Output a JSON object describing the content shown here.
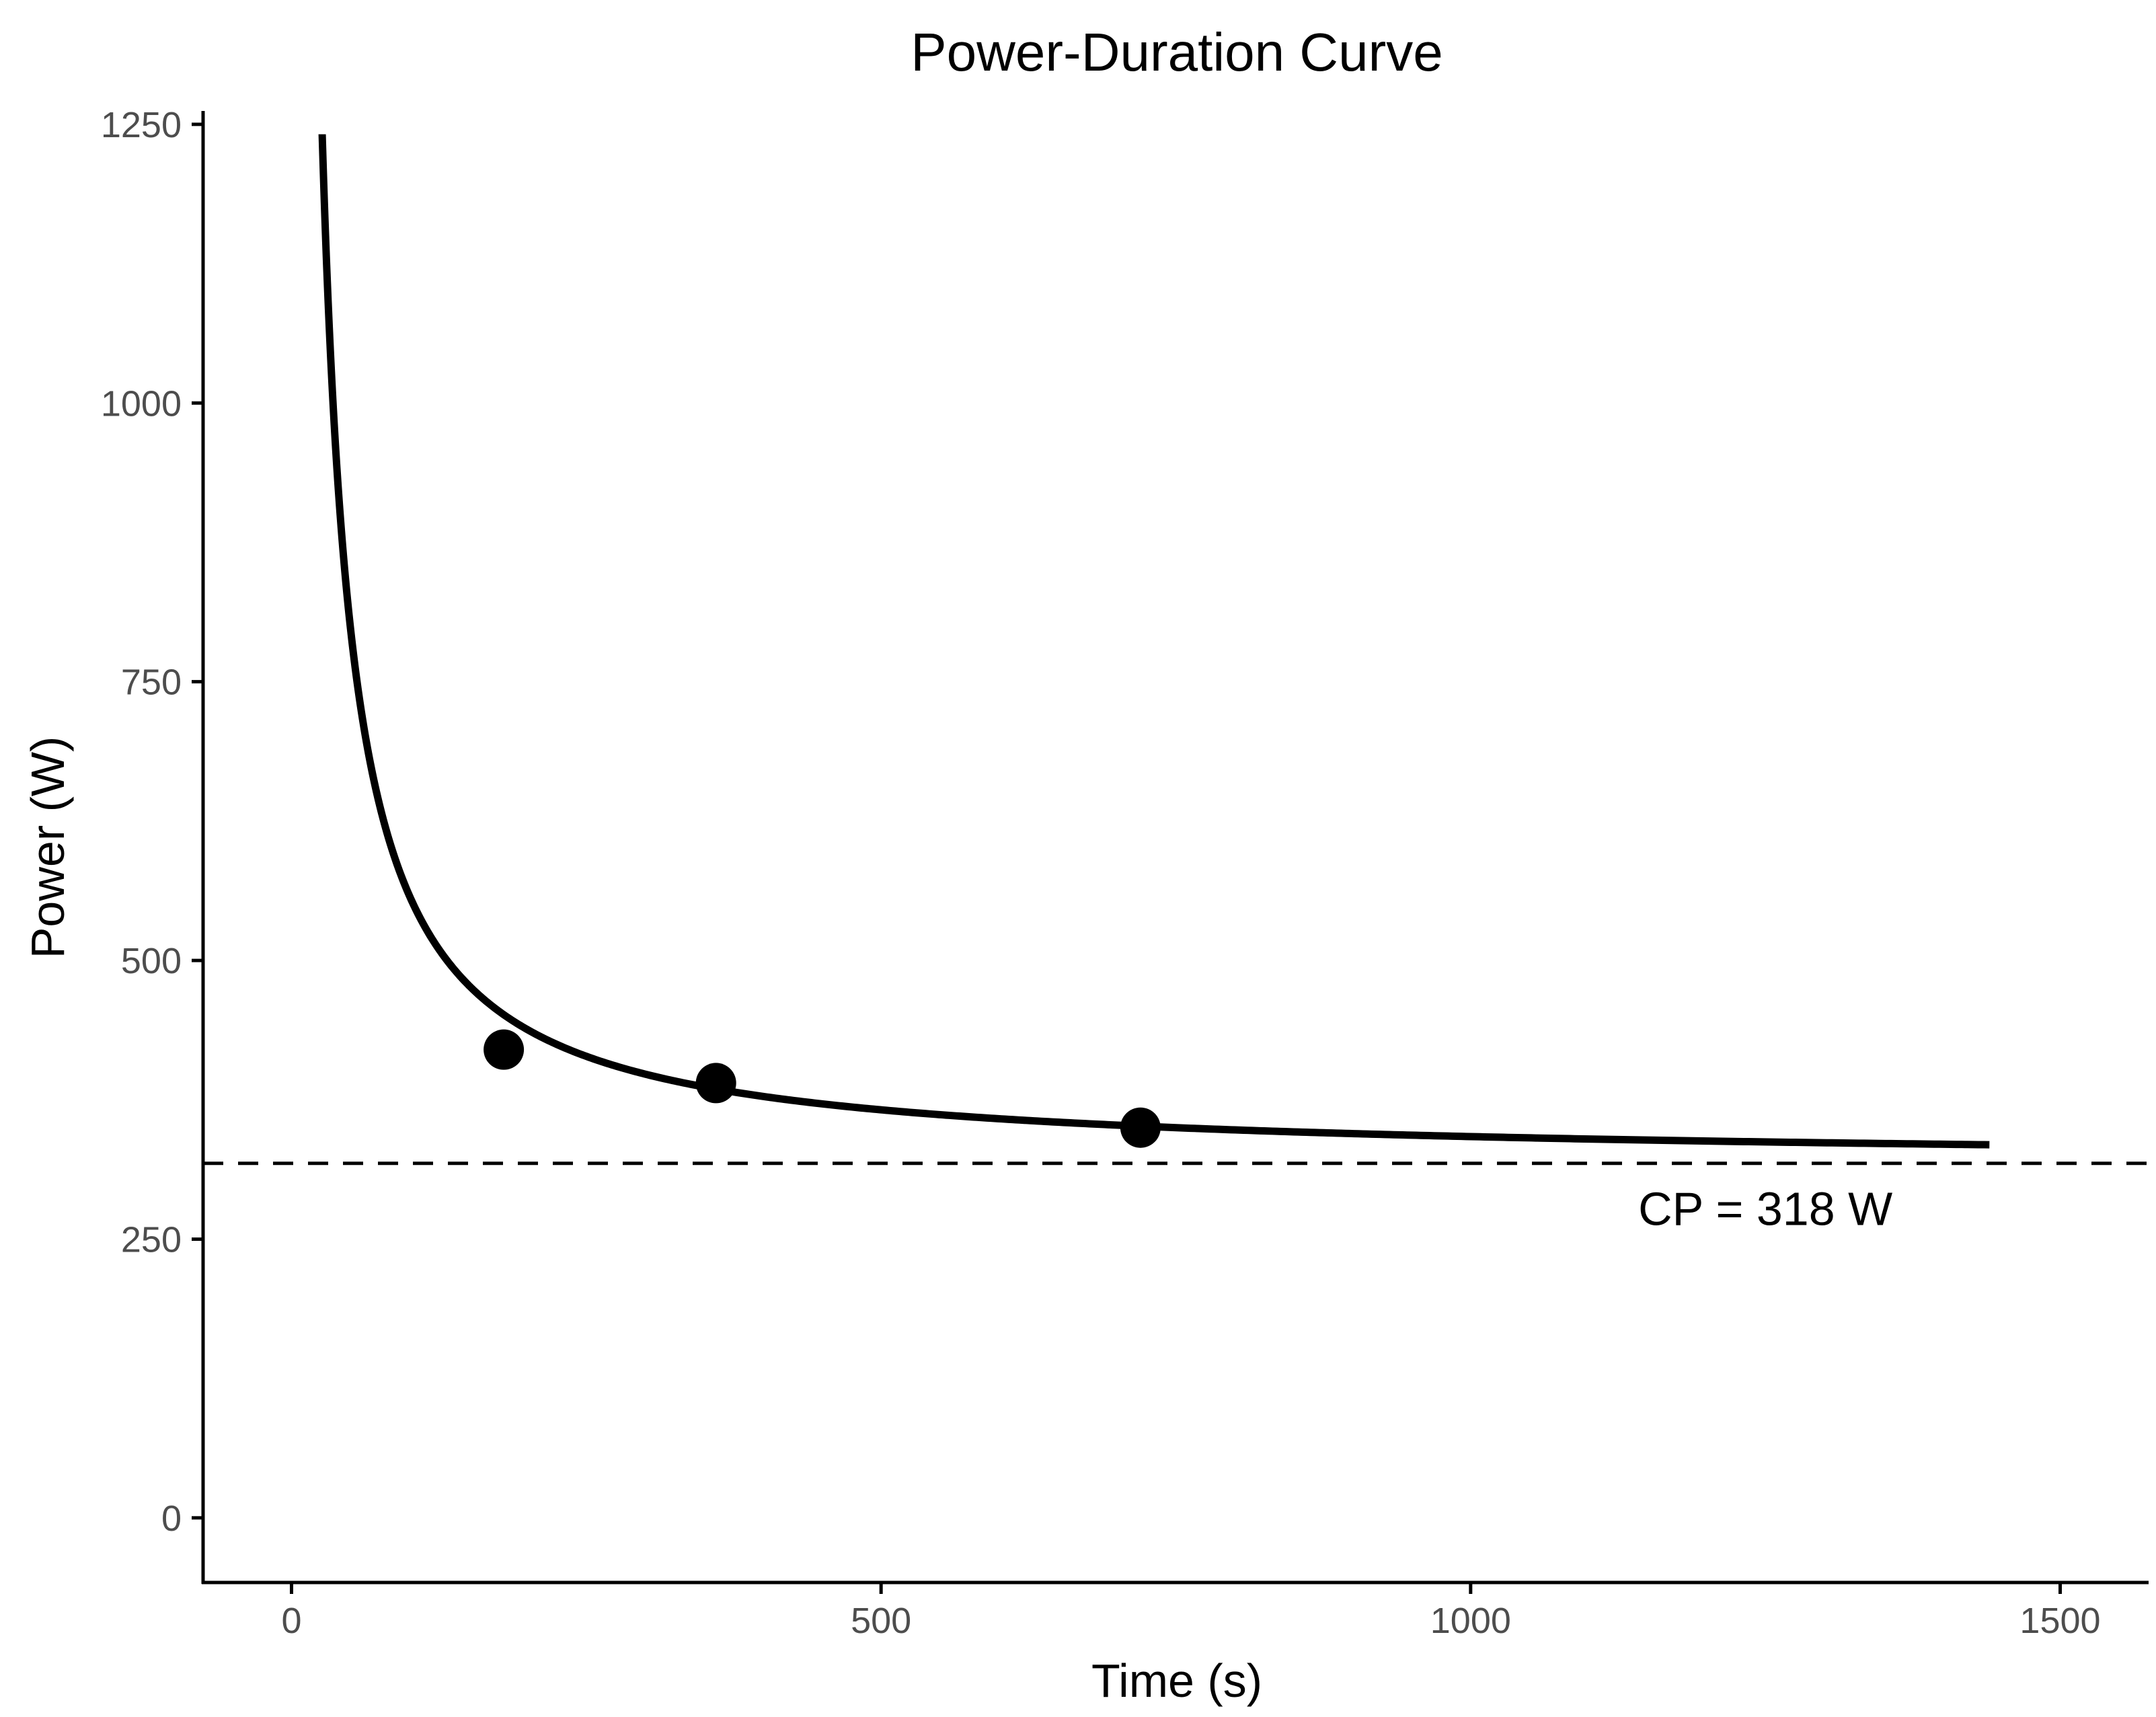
{
  "chart_data": {
    "type": "line",
    "title": "Power-Duration Curve",
    "xlabel": "Time (s)",
    "ylabel": "Power (W)",
    "xlim": [
      -75,
      1575
    ],
    "ylim": [
      -58,
      1262
    ],
    "x_ticks": [
      0,
      500,
      1000,
      1500
    ],
    "y_ticks": [
      0,
      250,
      500,
      750,
      1000,
      1250
    ],
    "grid": false,
    "model": {
      "name": "critical-power",
      "cp": 318,
      "w_prime": 24000,
      "t_start": 26,
      "t_end": 1440
    },
    "series": [
      {
        "kind": "fitted-curve",
        "color": "#000000"
      },
      {
        "kind": "points",
        "color": "#000000",
        "x": [
          180,
          360,
          720
        ],
        "y": [
          420,
          390,
          350
        ]
      }
    ],
    "hline": {
      "y": 318,
      "style": "dashed",
      "label": "CP = 318 W",
      "label_x": 1250,
      "label_y": 277
    }
  }
}
